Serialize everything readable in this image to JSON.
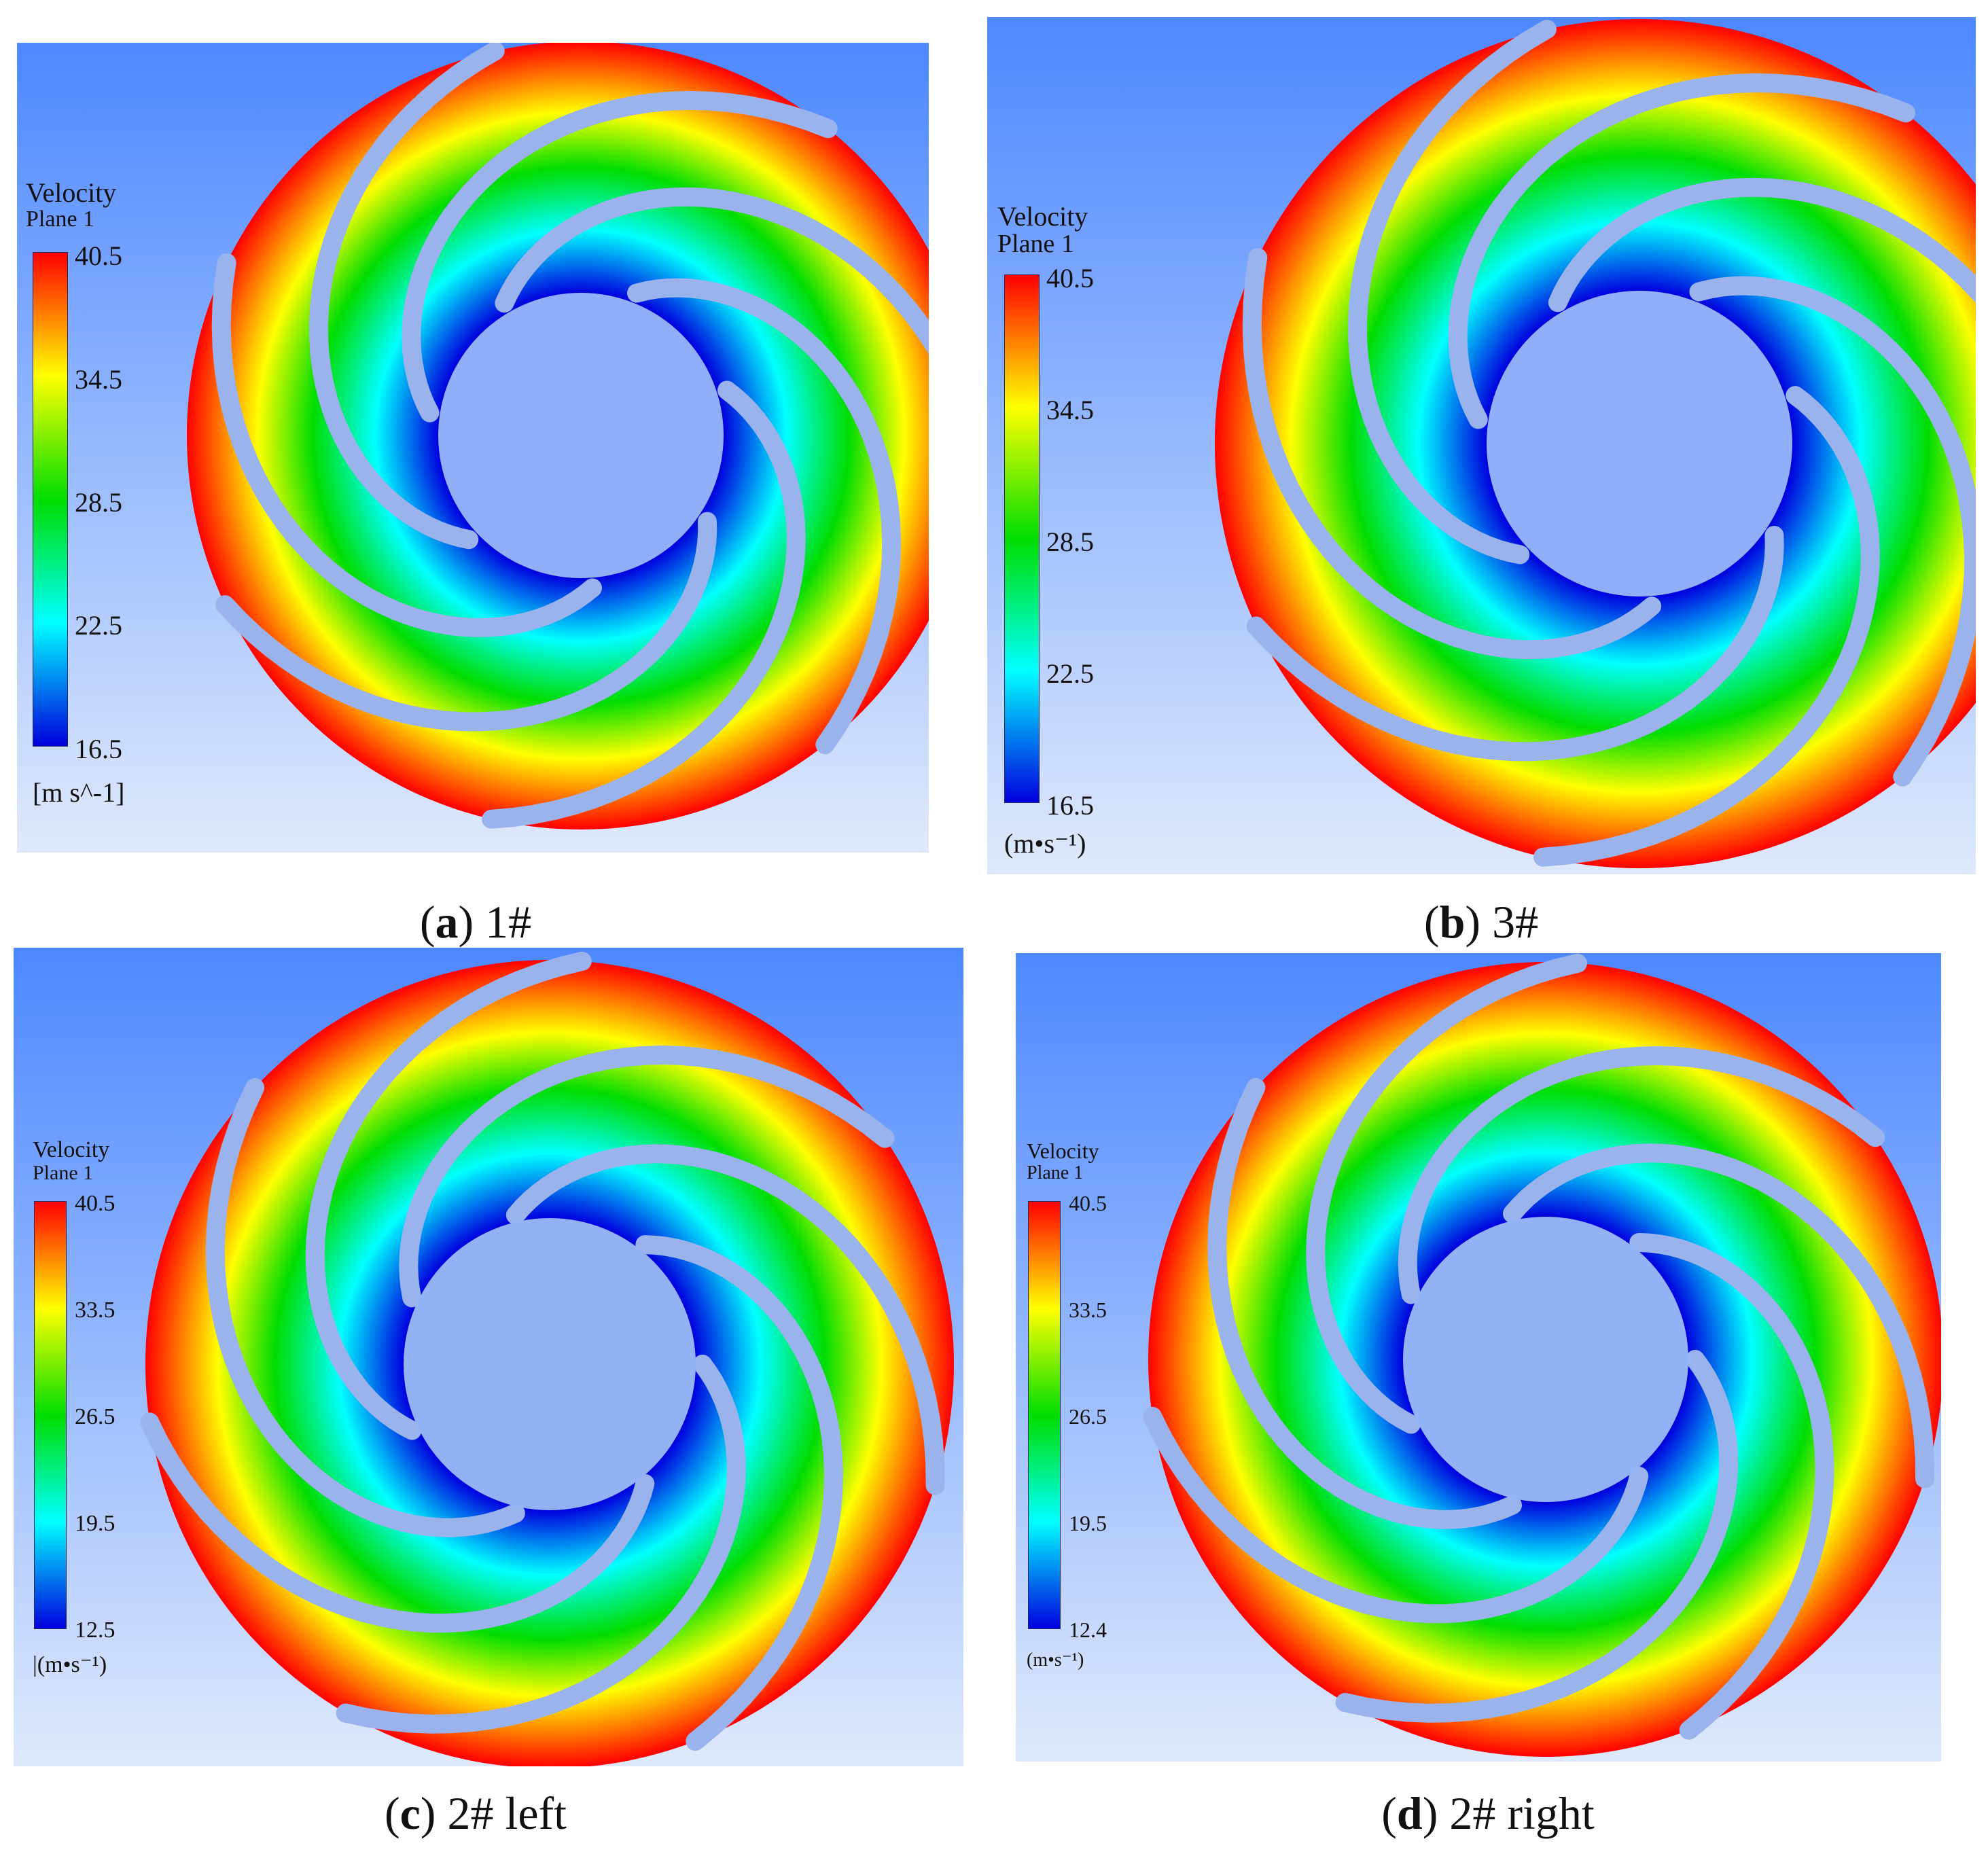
{
  "colors": {
    "bg_top": "#4d88ff",
    "bg_bottom": "#dfe9fb",
    "blade": "#9ab3ec",
    "scale": [
      "#0000dd",
      "#00ffff",
      "#00dd00",
      "#ffff00",
      "#ff0000"
    ]
  },
  "panels": [
    {
      "id": "a",
      "legend": {
        "title": "Velocity",
        "subtitle": "Plane 1",
        "ticks": [
          "40.5",
          "34.5",
          "28.5",
          "22.5",
          "16.5"
        ],
        "unit": "[m s^-1]"
      },
      "caption": {
        "letter": "a",
        "label": "1#"
      }
    },
    {
      "id": "b",
      "legend": {
        "title": "Velocity",
        "subtitle": "Plane 1",
        "ticks": [
          "40.5",
          "34.5",
          "28.5",
          "22.5",
          "16.5"
        ],
        "unit": "(m•s⁻¹)"
      },
      "caption": {
        "letter": "b",
        "label": "3#"
      }
    },
    {
      "id": "c",
      "legend": {
        "title": "Velocity",
        "subtitle": "Plane 1",
        "ticks": [
          "40.5",
          "33.5",
          "26.5",
          "19.5",
          "12.5"
        ],
        "unit": "|(m•s⁻¹)"
      },
      "caption": {
        "letter": "c",
        "label": "2# left"
      }
    },
    {
      "id": "d",
      "legend": {
        "title": "Velocity",
        "subtitle": "Plane 1",
        "ticks": [
          "40.5",
          "33.5",
          "26.5",
          "19.5",
          "12.4"
        ],
        "unit": "(m•s⁻¹)"
      },
      "caption": {
        "letter": "d",
        "label": "2# right"
      }
    }
  ]
}
